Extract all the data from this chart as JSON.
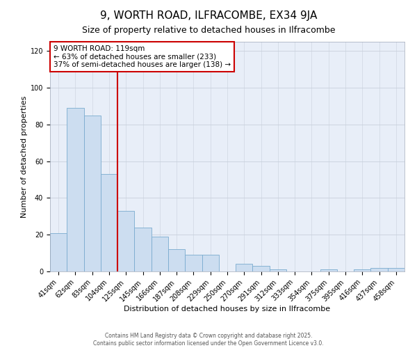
{
  "title": "9, WORTH ROAD, ILFRACOMBE, EX34 9JA",
  "subtitle": "Size of property relative to detached houses in Ilfracombe",
  "xlabel": "Distribution of detached houses by size in Ilfracombe",
  "ylabel": "Number of detached properties",
  "bar_labels": [
    "41sqm",
    "62sqm",
    "83sqm",
    "104sqm",
    "125sqm",
    "145sqm",
    "166sqm",
    "187sqm",
    "208sqm",
    "229sqm",
    "250sqm",
    "270sqm",
    "291sqm",
    "312sqm",
    "333sqm",
    "354sqm",
    "375sqm",
    "395sqm",
    "416sqm",
    "437sqm",
    "458sqm"
  ],
  "bar_values": [
    21,
    89,
    85,
    53,
    33,
    24,
    19,
    12,
    9,
    9,
    0,
    4,
    3,
    1,
    0,
    0,
    1,
    0,
    1,
    2,
    2
  ],
  "bar_color": "#ccddf0",
  "bar_edge_color": "#7aabcf",
  "vline_color": "#cc0000",
  "ylim": [
    0,
    125
  ],
  "yticks": [
    0,
    20,
    40,
    60,
    80,
    100,
    120
  ],
  "annotation_title": "9 WORTH ROAD: 119sqm",
  "annotation_line1": "← 63% of detached houses are smaller (233)",
  "annotation_line2": "37% of semi-detached houses are larger (138) →",
  "annotation_box_color": "#ffffff",
  "annotation_box_edge_color": "#cc0000",
  "footer1": "Contains HM Land Registry data © Crown copyright and database right 2025.",
  "footer2": "Contains public sector information licensed under the Open Government Licence v3.0.",
  "bg_color": "#ffffff",
  "plot_bg_color": "#e8eef8",
  "grid_color": "#c8d0dc",
  "title_fontsize": 11,
  "subtitle_fontsize": 9,
  "axis_label_fontsize": 8,
  "tick_fontsize": 7,
  "annotation_fontsize": 7.5,
  "footer_fontsize": 5.5
}
